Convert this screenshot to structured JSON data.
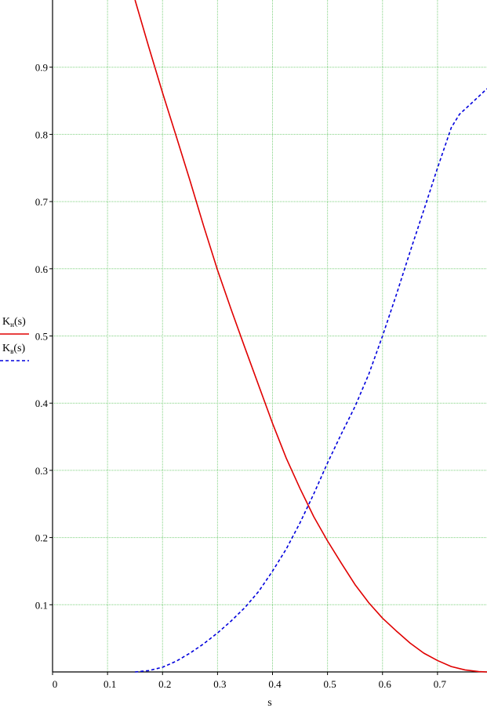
{
  "chart_data": {
    "type": "line",
    "title": "",
    "xlabel": "s",
    "ylabel": "",
    "xlim": [
      0,
      0.79
    ],
    "ylim": [
      0,
      1.0
    ],
    "x_ticks": [
      0,
      0.1,
      0.2,
      0.3,
      0.4,
      0.5,
      0.6,
      0.7
    ],
    "x_tick_labels": [
      "0",
      "0.1",
      "0.2",
      "0.3",
      "0.4",
      "0.5",
      "0.6",
      "0.7"
    ],
    "y_ticks": [
      0.1,
      0.2,
      0.3,
      0.4,
      0.5,
      0.6,
      0.7,
      0.8,
      0.9
    ],
    "y_tick_labels": [
      "0.1",
      "0.2",
      "0.3",
      "0.4",
      "0.5",
      "0.6",
      "0.7",
      "0.8",
      "0.9"
    ],
    "grid": true,
    "legend_position": "left",
    "series": [
      {
        "name": "K_н(s)",
        "legend_main": "K",
        "legend_sub": "н",
        "legend_arg": "(s)",
        "color": "#e00000",
        "dash": "solid",
        "x": [
          0.15,
          0.175,
          0.2,
          0.225,
          0.25,
          0.275,
          0.3,
          0.325,
          0.35,
          0.375,
          0.4,
          0.425,
          0.45,
          0.475,
          0.5,
          0.525,
          0.55,
          0.575,
          0.6,
          0.625,
          0.65,
          0.675,
          0.7,
          0.725,
          0.75,
          0.775,
          0.79
        ],
        "y": [
          1.0,
          0.93,
          0.862,
          0.797,
          0.731,
          0.663,
          0.598,
          0.539,
          0.482,
          0.426,
          0.37,
          0.318,
          0.273,
          0.231,
          0.195,
          0.162,
          0.13,
          0.103,
          0.08,
          0.061,
          0.043,
          0.028,
          0.017,
          0.008,
          0.003,
          0.0005,
          0.0
        ]
      },
      {
        "name": "K_в(s)",
        "legend_main": "K",
        "legend_sub": "в",
        "legend_arg": "(s)",
        "color": "#0000dd",
        "dash": "dashed",
        "x": [
          0.15,
          0.175,
          0.2,
          0.225,
          0.25,
          0.275,
          0.3,
          0.325,
          0.35,
          0.375,
          0.4,
          0.425,
          0.45,
          0.475,
          0.5,
          0.525,
          0.55,
          0.575,
          0.6,
          0.625,
          0.65,
          0.675,
          0.7,
          0.725,
          0.74,
          0.76,
          0.79
        ],
        "y": [
          0.0,
          0.002,
          0.007,
          0.016,
          0.028,
          0.042,
          0.058,
          0.076,
          0.096,
          0.12,
          0.15,
          0.183,
          0.222,
          0.265,
          0.311,
          0.354,
          0.395,
          0.443,
          0.5,
          0.561,
          0.625,
          0.687,
          0.75,
          0.81,
          0.83,
          0.845,
          0.868
        ]
      }
    ]
  }
}
